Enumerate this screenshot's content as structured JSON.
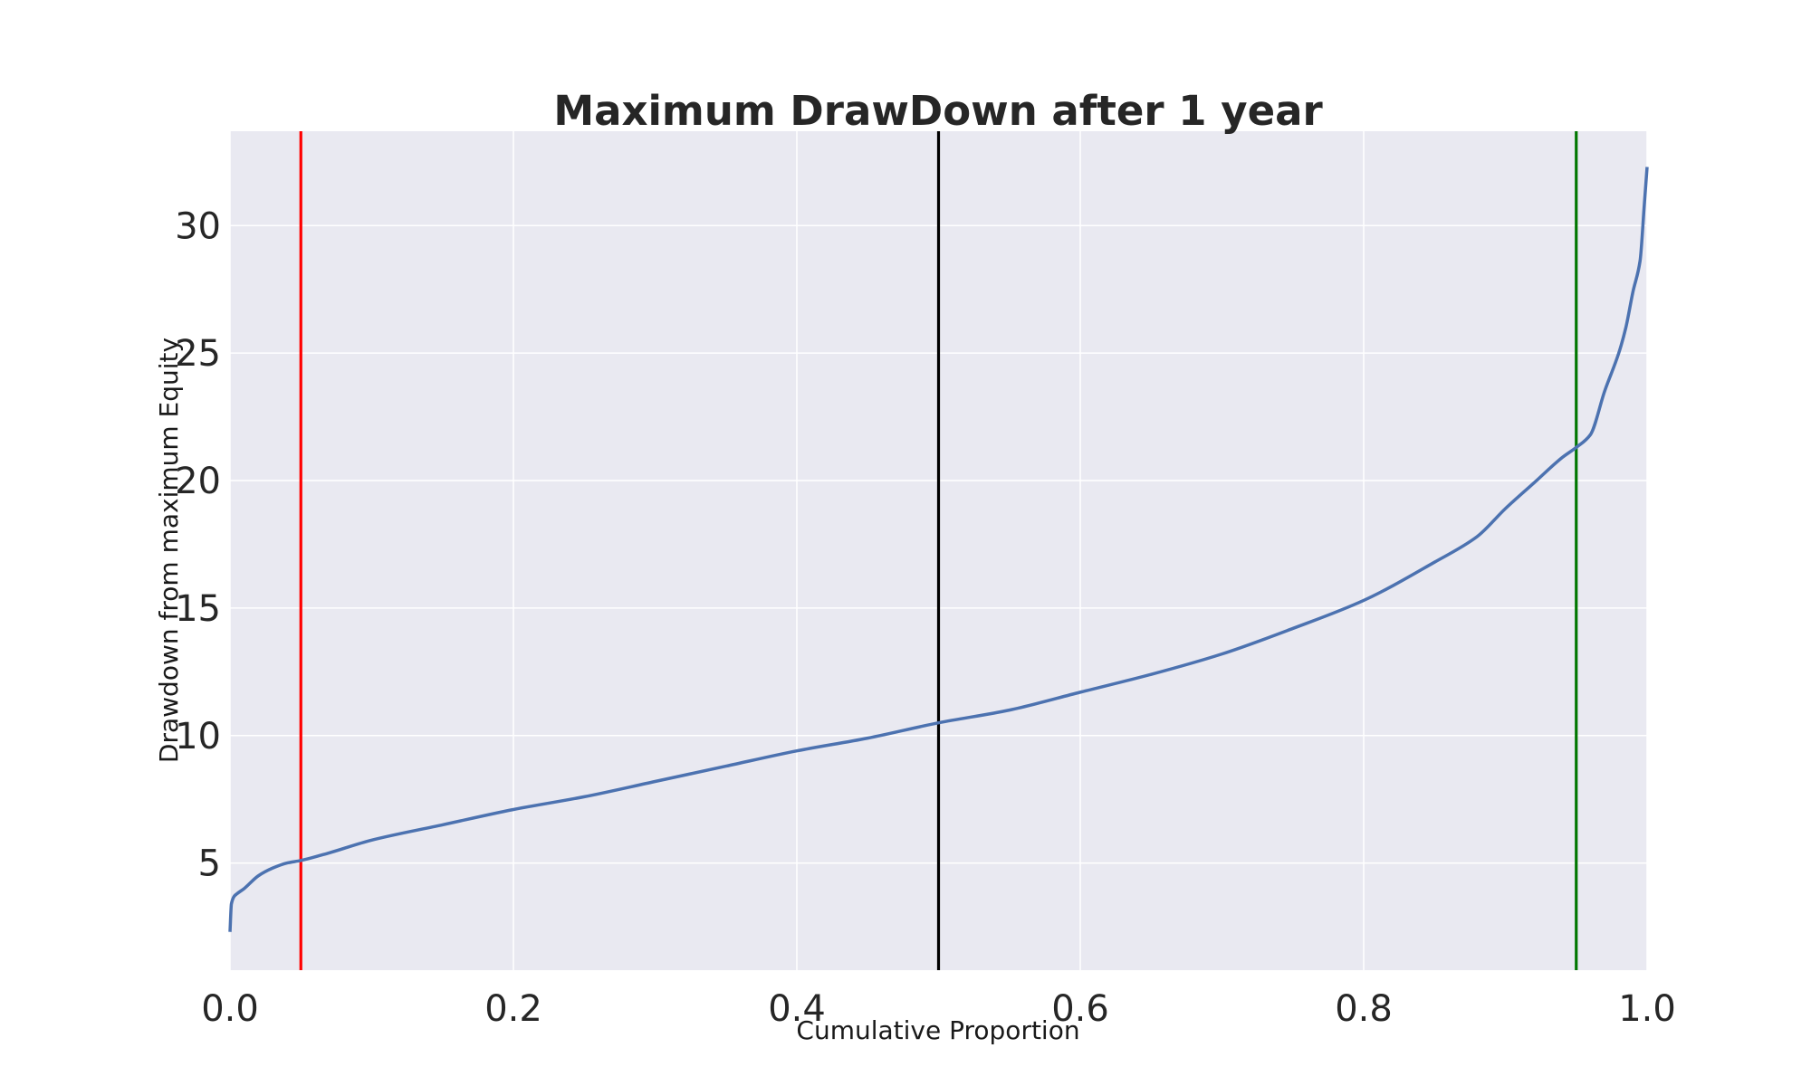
{
  "chart_data": {
    "type": "line",
    "title": "Maximum DrawDown after 1 year",
    "xlabel": "Cumulative Proportion",
    "ylabel": "Drawdown from maximum Equity",
    "xlim": [
      0.0,
      1.0
    ],
    "ylim": [
      0.8,
      33.7
    ],
    "xticks": [
      0.0,
      0.2,
      0.4,
      0.6,
      0.8,
      1.0
    ],
    "xtick_labels": [
      "0.0",
      "0.2",
      "0.4",
      "0.6",
      "0.8",
      "1.0"
    ],
    "yticks": [
      5,
      10,
      15,
      20,
      25,
      30
    ],
    "ytick_labels": [
      "5",
      "10",
      "15",
      "20",
      "25",
      "30"
    ],
    "grid": true,
    "background": "#e9e9f1",
    "series": [
      {
        "color": "#4c72b0",
        "x": [
          0.0,
          0.001,
          0.003,
          0.005,
          0.01,
          0.02,
          0.03,
          0.04,
          0.05,
          0.07,
          0.1,
          0.15,
          0.2,
          0.25,
          0.3,
          0.35,
          0.4,
          0.45,
          0.5,
          0.55,
          0.6,
          0.65,
          0.7,
          0.75,
          0.8,
          0.85,
          0.88,
          0.9,
          0.92,
          0.94,
          0.95,
          0.96,
          0.97,
          0.98,
          0.985,
          0.99,
          0.995,
          0.998,
          1.0
        ],
        "y": [
          2.3,
          3.4,
          3.7,
          3.8,
          4.0,
          4.5,
          4.8,
          5.0,
          5.1,
          5.4,
          5.9,
          6.5,
          7.1,
          7.6,
          8.2,
          8.8,
          9.4,
          9.9,
          10.5,
          11.0,
          11.7,
          12.4,
          13.2,
          14.2,
          15.3,
          16.8,
          17.8,
          18.9,
          19.9,
          20.9,
          21.3,
          21.8,
          23.5,
          25.0,
          26.0,
          27.4,
          28.6,
          30.8,
          32.3
        ]
      }
    ],
    "vlines": [
      {
        "x": 0.05,
        "color": "#ff0000"
      },
      {
        "x": 0.5,
        "color": "#000000"
      },
      {
        "x": 0.95,
        "color": "#007700"
      }
    ]
  }
}
